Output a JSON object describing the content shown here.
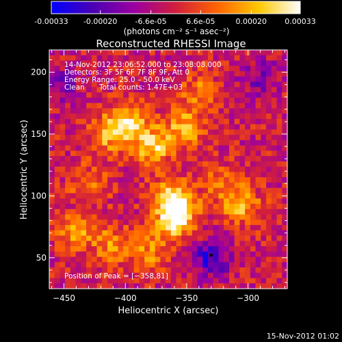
{
  "footer_timestamp": "15-Nov-2012 01:02",
  "colorbar": {
    "range": [
      -0.00033,
      0.00033
    ],
    "tick_labels": [
      "-0.00033",
      "-0.00020",
      "-6.6e-05",
      "6.6e-05",
      "0.00020",
      "0.00033"
    ],
    "tick_values": [
      -0.00033,
      -0.0002,
      -6.6e-05,
      6.6e-05,
      0.0002,
      0.00033
    ],
    "units": "(photons cm⁻² s⁻¹ asec⁻²)",
    "colors": [
      "#0000ff",
      "#4b00b4",
      "#9b00a0",
      "#d21e3c",
      "#ff6400",
      "#ffc800",
      "#ffffff"
    ]
  },
  "chart_data": {
    "type": "heatmap",
    "title": "Reconstructed RHESSI Image",
    "xlabel": "Heliocentric X (arcsec)",
    "ylabel": "Heliocentric Y (arcsec)",
    "xlim": [
      -462,
      -268
    ],
    "ylim": [
      25,
      218
    ],
    "x_ticks": [
      -450,
      -400,
      -350,
      -300
    ],
    "y_ticks": [
      50,
      100,
      150,
      200
    ],
    "x_tick_labels": [
      "−450",
      "−400",
      "−350",
      "−300"
    ],
    "y_tick_labels": [
      "50",
      "100",
      "150",
      "200"
    ],
    "annotations": {
      "time": "14-Nov-2012 23:06:52.000 to 23:08:08.000",
      "detectors": "Detectors: 3F 5F 6F 7F 8F 9F, Att 0",
      "energy": "Energy Range: 25.0 – 50.0 keV",
      "method": "Clean",
      "total_counts": "Total counts: 1.47E+03",
      "peak": "Position of Peak = [−358,81]"
    },
    "peak_position": [
      -358,
      81
    ],
    "total_counts": 1470,
    "energy_range_keV": [
      25.0,
      50.0
    ],
    "emission_sources": [
      {
        "x": -362,
        "y": 97,
        "relative_intensity": 1.0
      },
      {
        "x": -378,
        "y": 140,
        "relative_intensity": 0.8
      },
      {
        "x": -398,
        "y": 160,
        "relative_intensity": 0.7
      },
      {
        "x": -352,
        "y": 155,
        "relative_intensity": 0.65
      },
      {
        "x": -415,
        "y": 150,
        "relative_intensity": 0.6
      },
      {
        "x": -358,
        "y": 81,
        "relative_intensity": 0.9
      },
      {
        "x": -305,
        "y": 92,
        "relative_intensity": 0.6
      },
      {
        "x": -440,
        "y": 70,
        "relative_intensity": 0.55
      },
      {
        "x": -410,
        "y": 60,
        "relative_intensity": 0.5
      },
      {
        "x": -380,
        "y": 55,
        "relative_intensity": 0.45
      },
      {
        "x": -322,
        "y": 110,
        "relative_intensity": 0.45
      },
      {
        "x": -340,
        "y": 185,
        "relative_intensity": 0.4
      },
      {
        "x": -430,
        "y": 110,
        "relative_intensity": 0.4
      }
    ],
    "negative_regions": [
      {
        "x": -330,
        "y": 50,
        "relative_intensity": -0.7
      },
      {
        "x": -290,
        "y": 195,
        "relative_intensity": -0.4
      },
      {
        "x": -450,
        "y": 190,
        "relative_intensity": -0.35
      }
    ]
  }
}
